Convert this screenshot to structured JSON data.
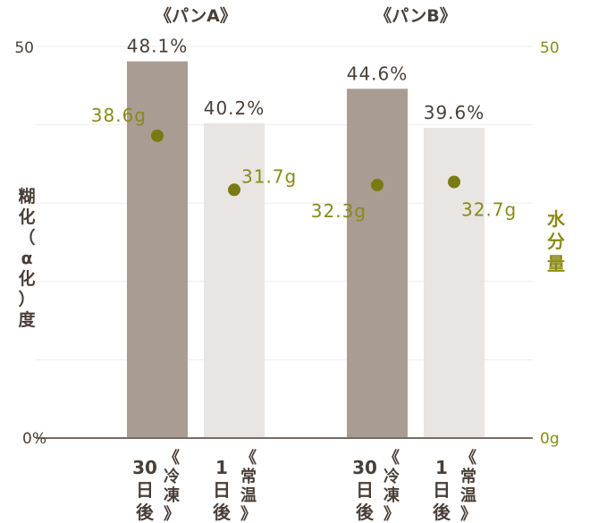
{
  "chart_data": {
    "type": "bar",
    "groups": [
      "《パンA》",
      "《パンB》"
    ],
    "y_left": {
      "label": "糊化（α化）度",
      "range": [
        0,
        50
      ],
      "tick_labels": [
        "0%",
        "50"
      ]
    },
    "y_right": {
      "label": "水分量",
      "range": [
        0,
        50
      ],
      "tick_labels": [
        "0g",
        "50"
      ]
    },
    "bars": [
      {
        "group": "《パンA》",
        "x_label": [
          "30",
          "日",
          "後"
        ],
        "x_sublabel": [
          "《",
          "冷",
          "凍",
          "》"
        ],
        "value": 48.1,
        "value_label": "48.1%",
        "color": "#a99d93",
        "moisture": 38.6,
        "moisture_label": "38.6g"
      },
      {
        "group": "《パンA》",
        "x_label": [
          "1",
          "日",
          "後"
        ],
        "x_sublabel": [
          "《",
          "常",
          "温",
          "》"
        ],
        "value": 40.2,
        "value_label": "40.2%",
        "color": "#e8e5e2",
        "moisture": 31.7,
        "moisture_label": "31.7g"
      },
      {
        "group": "《パンB》",
        "x_label": [
          "30",
          "日",
          "後"
        ],
        "x_sublabel": [
          "《",
          "冷",
          "凍",
          "》"
        ],
        "value": 44.6,
        "value_label": "44.6%",
        "color": "#a99d93",
        "moisture": 32.3,
        "moisture_label": "32.3g"
      },
      {
        "group": "《パンB》",
        "x_label": [
          "1",
          "日",
          "後"
        ],
        "x_sublabel": [
          "《",
          "常",
          "温",
          "》"
        ],
        "value": 39.6,
        "value_label": "39.6%",
        "color": "#e8e5e2",
        "moisture": 32.7,
        "moisture_label": "32.7g"
      }
    ],
    "grid": true,
    "colors": {
      "text": "#4a3f38",
      "baseline": "#7a6b5f",
      "moisture_dot": "#7a7a12",
      "moisture_text": "#8a8a18",
      "grid": "#eeeeee"
    }
  }
}
